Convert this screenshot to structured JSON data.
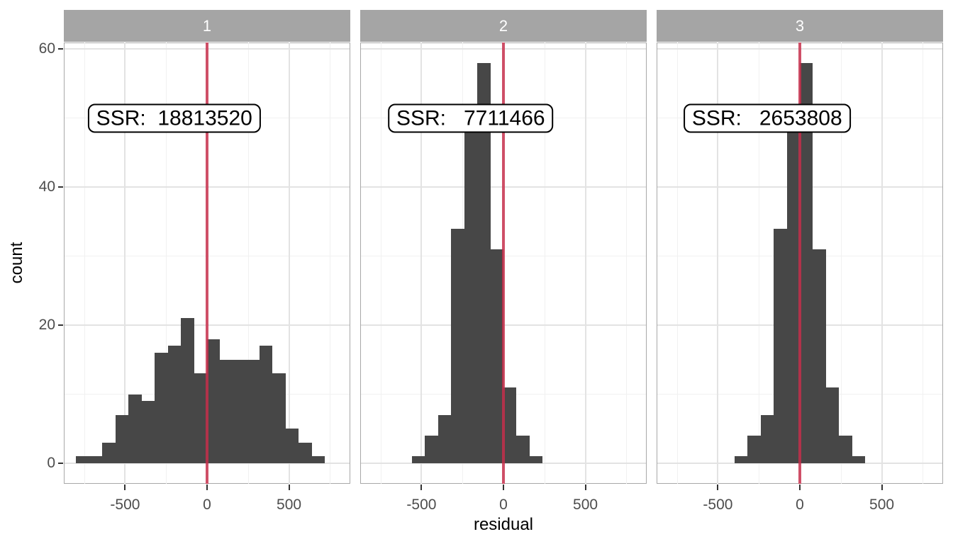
{
  "axes": {
    "x_title": "residual",
    "y_title": "count"
  },
  "chart_data": {
    "type": "histogram",
    "faceted": true,
    "xlabel": "residual",
    "ylabel": "count",
    "x_domain": [
      -874,
      874
    ],
    "y_domain": [
      -3,
      61
    ],
    "grid": true,
    "bin_width": 80,
    "vline_x": 0,
    "annotation_pos": {
      "x": -200,
      "y": 50
    },
    "x_ticks": [
      {
        "value": -500,
        "label": "-500"
      },
      {
        "value": 0,
        "label": "0"
      },
      {
        "value": 500,
        "label": "500"
      }
    ],
    "x_minor": [
      -750,
      -250,
      250,
      750
    ],
    "y_ticks": [
      {
        "value": 0,
        "label": "0"
      },
      {
        "value": 20,
        "label": "20"
      },
      {
        "value": 40,
        "label": "40"
      },
      {
        "value": 60,
        "label": "60"
      }
    ],
    "y_minor": [
      10,
      30,
      50
    ],
    "facets": [
      {
        "strip_label": "1",
        "ssr_value": 18813520,
        "ssr_label": "SSR:  18813520",
        "bins_start": -800,
        "counts": [
          1,
          1,
          3,
          7,
          10,
          9,
          16,
          17,
          21,
          13,
          18,
          15,
          15,
          15,
          17,
          13,
          5,
          3,
          1
        ]
      },
      {
        "strip_label": "2",
        "ssr_value": 7711466,
        "ssr_label": "SSR:   7711466",
        "bins_start": -560,
        "counts": [
          1,
          4,
          7,
          34,
          49,
          58,
          31,
          11,
          4,
          1
        ]
      },
      {
        "strip_label": "3",
        "ssr_value": 2653808,
        "ssr_label": "SSR:   2653808",
        "bins_start": -400,
        "counts": [
          1,
          4,
          7,
          34,
          49,
          58,
          31,
          11,
          4,
          1
        ]
      }
    ]
  },
  "colors": {
    "bar": "#474747",
    "vline": "rgba(200,45,75,0.82)",
    "strip_bg": "#A5A5A5",
    "strip_text": "#FFFFFF",
    "grid_major": "#E3E3E3",
    "grid_minor": "#F1F1F1",
    "panel_border": "#A8A8A8",
    "tick_mark": "#333333",
    "tick_label": "#4D4D4D",
    "axis_title": "#000000",
    "label_bg": "#FFFFFF",
    "label_border": "#000000",
    "label_text": "#000000"
  }
}
